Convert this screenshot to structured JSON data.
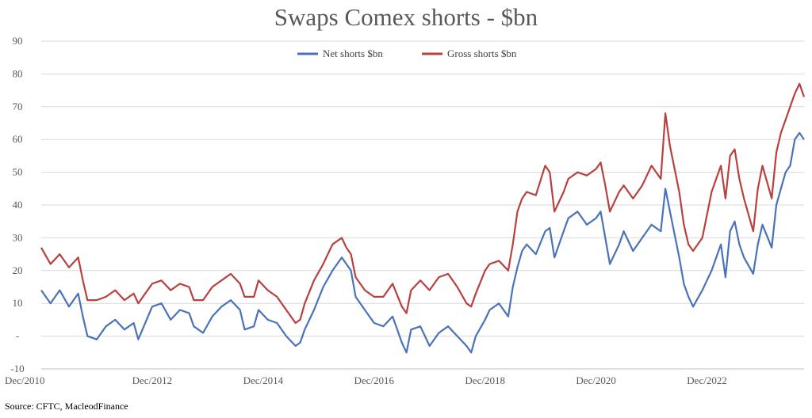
{
  "chart_data": {
    "type": "line",
    "title": "Swaps Comex shorts - $bn",
    "source": "Source: CFTC, MacleodFinance",
    "ylim": [
      -10,
      90
    ],
    "y_ticks": [
      90,
      80,
      70,
      60,
      50,
      40,
      30,
      20,
      10,
      0,
      -10
    ],
    "y_tick_labels": [
      "90",
      "80",
      "70",
      "60",
      "50",
      "40",
      "30",
      "20",
      "10",
      "-",
      "-10"
    ],
    "x_tick_labels": [
      "Dec/2010",
      "Dec/2012",
      "Dec/2014",
      "Dec/2016",
      "Dec/2018",
      "Dec/2020",
      "Dec/2022"
    ],
    "x_tick_dates": [
      "2010-12",
      "2012-12",
      "2014-12",
      "2016-12",
      "2018-12",
      "2020-12",
      "2022-12"
    ],
    "x_range": [
      "2010-12",
      "2024-09"
    ],
    "grid": true,
    "legend_position": "top-center",
    "colors": {
      "net": "#4a72b8",
      "gross": "#b8403e",
      "grid": "#d9d9d9",
      "axis": "#bfbfbf"
    },
    "series": [
      {
        "name": "Net shorts $bn",
        "color": "#4a72b8",
        "points": [
          [
            "2010-12",
            14
          ],
          [
            "2011-02",
            10
          ],
          [
            "2011-04",
            14
          ],
          [
            "2011-06",
            9
          ],
          [
            "2011-08",
            13
          ],
          [
            "2011-09",
            6
          ],
          [
            "2011-10",
            0
          ],
          [
            "2011-12",
            -1
          ],
          [
            "2012-02",
            3
          ],
          [
            "2012-04",
            5
          ],
          [
            "2012-06",
            2
          ],
          [
            "2012-08",
            4
          ],
          [
            "2012-09",
            -1
          ],
          [
            "2012-12",
            9
          ],
          [
            "2013-02",
            10
          ],
          [
            "2013-04",
            5
          ],
          [
            "2013-06",
            8
          ],
          [
            "2013-08",
            7
          ],
          [
            "2013-09",
            3
          ],
          [
            "2013-11",
            1
          ],
          [
            "2014-01",
            6
          ],
          [
            "2014-03",
            9
          ],
          [
            "2014-05",
            11
          ],
          [
            "2014-07",
            8
          ],
          [
            "2014-08",
            2
          ],
          [
            "2014-10",
            3
          ],
          [
            "2014-11",
            8
          ],
          [
            "2015-01",
            5
          ],
          [
            "2015-03",
            4
          ],
          [
            "2015-05",
            0
          ],
          [
            "2015-07",
            -3
          ],
          [
            "2015-08",
            -2
          ],
          [
            "2015-09",
            2
          ],
          [
            "2015-11",
            8
          ],
          [
            "2016-01",
            15
          ],
          [
            "2016-03",
            20
          ],
          [
            "2016-05",
            24
          ],
          [
            "2016-06",
            22
          ],
          [
            "2016-07",
            20
          ],
          [
            "2016-08",
            12
          ],
          [
            "2016-10",
            8
          ],
          [
            "2016-12",
            4
          ],
          [
            "2017-02",
            3
          ],
          [
            "2017-04",
            6
          ],
          [
            "2017-06",
            -2
          ],
          [
            "2017-07",
            -5
          ],
          [
            "2017-08",
            2
          ],
          [
            "2017-10",
            3
          ],
          [
            "2017-12",
            -3
          ],
          [
            "2018-02",
            1
          ],
          [
            "2018-04",
            3
          ],
          [
            "2018-06",
            0
          ],
          [
            "2018-08",
            -3
          ],
          [
            "2018-09",
            -5
          ],
          [
            "2018-10",
            0
          ],
          [
            "2018-12",
            5
          ],
          [
            "2019-01",
            8
          ],
          [
            "2019-03",
            10
          ],
          [
            "2019-05",
            6
          ],
          [
            "2019-06",
            15
          ],
          [
            "2019-07",
            21
          ],
          [
            "2019-08",
            26
          ],
          [
            "2019-09",
            28
          ],
          [
            "2019-11",
            25
          ],
          [
            "2020-01",
            32
          ],
          [
            "2020-02",
            33
          ],
          [
            "2020-03",
            24
          ],
          [
            "2020-05",
            32
          ],
          [
            "2020-06",
            36
          ],
          [
            "2020-08",
            38
          ],
          [
            "2020-10",
            34
          ],
          [
            "2020-12",
            36
          ],
          [
            "2021-01",
            38
          ],
          [
            "2021-02",
            30
          ],
          [
            "2021-03",
            22
          ],
          [
            "2021-05",
            28
          ],
          [
            "2021-06",
            32
          ],
          [
            "2021-08",
            26
          ],
          [
            "2021-10",
            30
          ],
          [
            "2021-12",
            34
          ],
          [
            "2022-02",
            32
          ],
          [
            "2022-03",
            45
          ],
          [
            "2022-04",
            38
          ],
          [
            "2022-06",
            24
          ],
          [
            "2022-07",
            16
          ],
          [
            "2022-08",
            12
          ],
          [
            "2022-09",
            9
          ],
          [
            "2022-11",
            14
          ],
          [
            "2023-01",
            20
          ],
          [
            "2023-03",
            28
          ],
          [
            "2023-04",
            18
          ],
          [
            "2023-05",
            32
          ],
          [
            "2023-06",
            35
          ],
          [
            "2023-07",
            28
          ],
          [
            "2023-08",
            24
          ],
          [
            "2023-10",
            19
          ],
          [
            "2023-11",
            28
          ],
          [
            "2023-12",
            34
          ],
          [
            "2024-02",
            27
          ],
          [
            "2024-03",
            40
          ],
          [
            "2024-04",
            45
          ],
          [
            "2024-05",
            50
          ],
          [
            "2024-06",
            52
          ],
          [
            "2024-07",
            60
          ],
          [
            "2024-08",
            62
          ],
          [
            "2024-09",
            60
          ]
        ]
      },
      {
        "name": "Gross shorts $bn",
        "color": "#b8403e",
        "points": [
          [
            "2010-12",
            27
          ],
          [
            "2011-02",
            22
          ],
          [
            "2011-04",
            25
          ],
          [
            "2011-06",
            21
          ],
          [
            "2011-08",
            24
          ],
          [
            "2011-09",
            17
          ],
          [
            "2011-10",
            11
          ],
          [
            "2011-12",
            11
          ],
          [
            "2012-02",
            12
          ],
          [
            "2012-04",
            14
          ],
          [
            "2012-06",
            11
          ],
          [
            "2012-08",
            13
          ],
          [
            "2012-09",
            10
          ],
          [
            "2012-12",
            16
          ],
          [
            "2013-02",
            17
          ],
          [
            "2013-04",
            14
          ],
          [
            "2013-06",
            16
          ],
          [
            "2013-08",
            15
          ],
          [
            "2013-09",
            11
          ],
          [
            "2013-11",
            11
          ],
          [
            "2014-01",
            15
          ],
          [
            "2014-03",
            17
          ],
          [
            "2014-05",
            19
          ],
          [
            "2014-07",
            16
          ],
          [
            "2014-08",
            12
          ],
          [
            "2014-10",
            12
          ],
          [
            "2014-11",
            17
          ],
          [
            "2015-01",
            14
          ],
          [
            "2015-03",
            12
          ],
          [
            "2015-05",
            8
          ],
          [
            "2015-07",
            4
          ],
          [
            "2015-08",
            5
          ],
          [
            "2015-09",
            10
          ],
          [
            "2015-11",
            17
          ],
          [
            "2016-01",
            22
          ],
          [
            "2016-03",
            28
          ],
          [
            "2016-05",
            30
          ],
          [
            "2016-06",
            27
          ],
          [
            "2016-07",
            25
          ],
          [
            "2016-08",
            18
          ],
          [
            "2016-10",
            14
          ],
          [
            "2016-12",
            12
          ],
          [
            "2017-02",
            12
          ],
          [
            "2017-04",
            16
          ],
          [
            "2017-06",
            9
          ],
          [
            "2017-07",
            7
          ],
          [
            "2017-08",
            14
          ],
          [
            "2017-10",
            17
          ],
          [
            "2017-12",
            14
          ],
          [
            "2018-02",
            18
          ],
          [
            "2018-04",
            19
          ],
          [
            "2018-06",
            15
          ],
          [
            "2018-08",
            10
          ],
          [
            "2018-09",
            9
          ],
          [
            "2018-10",
            13
          ],
          [
            "2018-12",
            20
          ],
          [
            "2019-01",
            22
          ],
          [
            "2019-03",
            23
          ],
          [
            "2019-05",
            20
          ],
          [
            "2019-06",
            28
          ],
          [
            "2019-07",
            38
          ],
          [
            "2019-08",
            42
          ],
          [
            "2019-09",
            44
          ],
          [
            "2019-11",
            43
          ],
          [
            "2020-01",
            52
          ],
          [
            "2020-02",
            50
          ],
          [
            "2020-03",
            38
          ],
          [
            "2020-05",
            44
          ],
          [
            "2020-06",
            48
          ],
          [
            "2020-08",
            50
          ],
          [
            "2020-10",
            49
          ],
          [
            "2020-12",
            51
          ],
          [
            "2021-01",
            53
          ],
          [
            "2021-02",
            46
          ],
          [
            "2021-03",
            38
          ],
          [
            "2021-05",
            44
          ],
          [
            "2021-06",
            46
          ],
          [
            "2021-08",
            42
          ],
          [
            "2021-10",
            46
          ],
          [
            "2021-12",
            52
          ],
          [
            "2022-02",
            48
          ],
          [
            "2022-03",
            68
          ],
          [
            "2022-04",
            58
          ],
          [
            "2022-06",
            44
          ],
          [
            "2022-07",
            34
          ],
          [
            "2022-08",
            28
          ],
          [
            "2022-09",
            26
          ],
          [
            "2022-11",
            30
          ],
          [
            "2023-01",
            44
          ],
          [
            "2023-03",
            52
          ],
          [
            "2023-04",
            42
          ],
          [
            "2023-05",
            55
          ],
          [
            "2023-06",
            57
          ],
          [
            "2023-07",
            48
          ],
          [
            "2023-08",
            42
          ],
          [
            "2023-10",
            32
          ],
          [
            "2023-11",
            45
          ],
          [
            "2023-12",
            52
          ],
          [
            "2024-02",
            42
          ],
          [
            "2024-03",
            56
          ],
          [
            "2024-04",
            62
          ],
          [
            "2024-05",
            66
          ],
          [
            "2024-06",
            70
          ],
          [
            "2024-07",
            74
          ],
          [
            "2024-08",
            77
          ],
          [
            "2024-09",
            73
          ]
        ]
      }
    ]
  }
}
